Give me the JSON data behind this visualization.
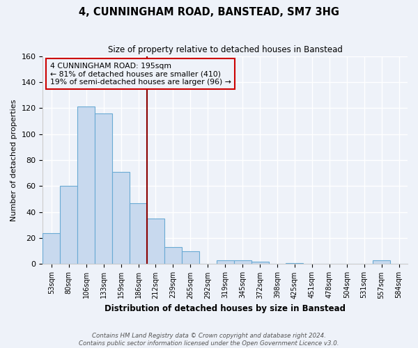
{
  "title": "4, CUNNINGHAM ROAD, BANSTEAD, SM7 3HG",
  "subtitle": "Size of property relative to detached houses in Banstead",
  "xlabel": "Distribution of detached houses by size in Banstead",
  "ylabel": "Number of detached properties",
  "bar_labels": [
    "53sqm",
    "80sqm",
    "106sqm",
    "133sqm",
    "159sqm",
    "186sqm",
    "212sqm",
    "239sqm",
    "265sqm",
    "292sqm",
    "319sqm",
    "345sqm",
    "372sqm",
    "398sqm",
    "425sqm",
    "451sqm",
    "478sqm",
    "504sqm",
    "531sqm",
    "557sqm",
    "584sqm"
  ],
  "bar_values": [
    24,
    60,
    121,
    116,
    71,
    47,
    35,
    13,
    10,
    0,
    3,
    3,
    2,
    0,
    1,
    0,
    0,
    0,
    0,
    3,
    0
  ],
  "bar_color": "#c8d9ee",
  "bar_edge_color": "#6aaad4",
  "ylim": [
    0,
    160
  ],
  "yticks": [
    0,
    20,
    40,
    60,
    80,
    100,
    120,
    140,
    160
  ],
  "vline_x": 5.5,
  "vline_color": "#8b0000",
  "annotation_title": "4 CUNNINGHAM ROAD: 195sqm",
  "annotation_line1": "← 81% of detached houses are smaller (410)",
  "annotation_line2": "19% of semi-detached houses are larger (96) →",
  "annotation_box_edge": "#cc0000",
  "footnote1": "Contains HM Land Registry data © Crown copyright and database right 2024.",
  "footnote2": "Contains public sector information licensed under the Open Government Licence v3.0.",
  "background_color": "#eef2f9",
  "grid_color": "#ffffff",
  "title_fontsize": 10.5,
  "subtitle_fontsize": 8.5
}
